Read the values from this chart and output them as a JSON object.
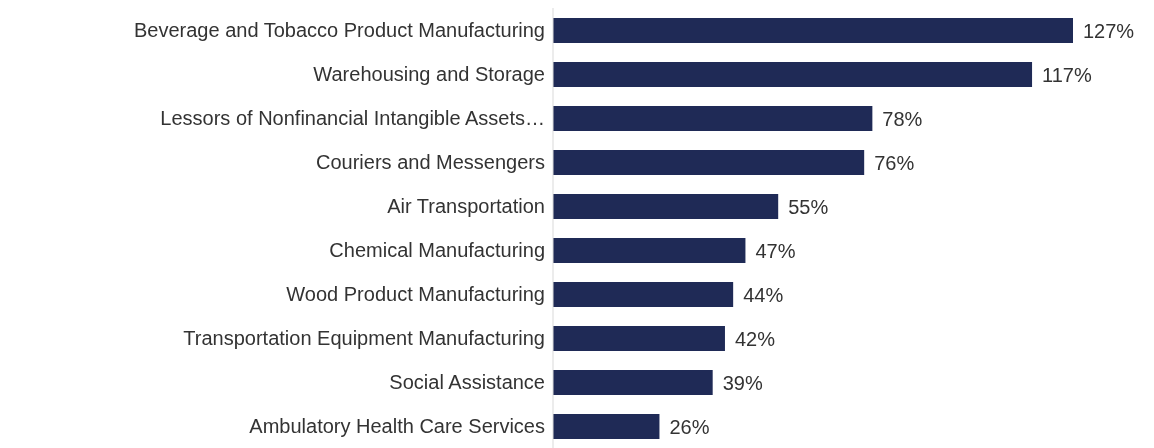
{
  "chart_data": {
    "type": "bar",
    "orientation": "horizontal",
    "categories": [
      "Beverage and Tobacco Product Manufacturing",
      "Warehousing and Storage",
      "Lessors of Nonfinancial Intangible Assets…",
      "Couriers and Messengers",
      "Air Transportation",
      "Chemical Manufacturing",
      "Wood Product Manufacturing",
      "Transportation Equipment Manufacturing",
      "Social Assistance",
      "Ambulatory Health Care Services"
    ],
    "values": [
      127,
      117,
      78,
      76,
      55,
      47,
      44,
      42,
      39,
      26
    ],
    "value_labels": [
      "127%",
      "117%",
      "78%",
      "76%",
      "55%",
      "47%",
      "44%",
      "42%",
      "39%",
      "26%"
    ],
    "color": "#1f2a56",
    "grid": false,
    "legend": false
  }
}
